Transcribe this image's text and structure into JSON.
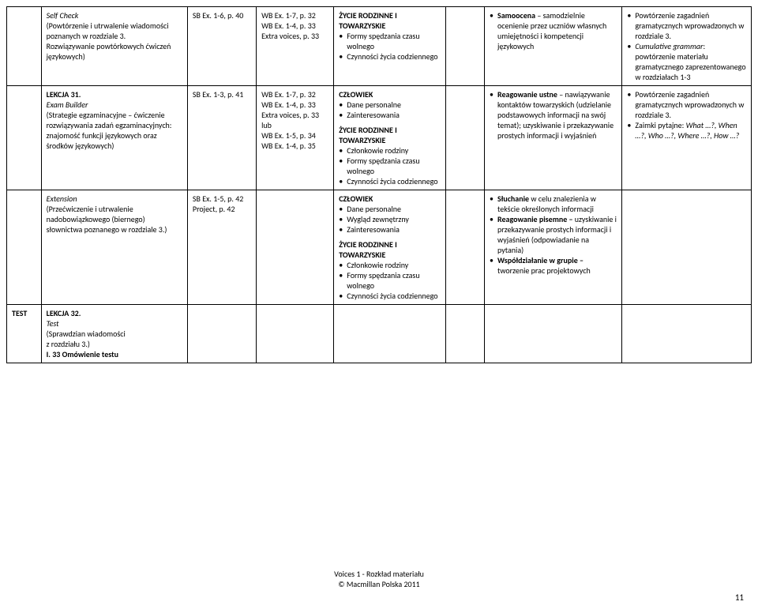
{
  "rows": [
    {
      "c0": "",
      "c1": {
        "title": "Self Check",
        "titleItalic": true,
        "lines": [
          "(Powtórzenie i utrwalenie wiadomości poznanych w rozdziale 3.",
          "Rozwiązywanie powtórkowych ćwiczeń językowych)"
        ]
      },
      "c2": "SB Ex. 1-6, p. 40",
      "c3": [
        "WB Ex. 1-7, p. 32",
        "WB Ex. 1-4, p. 33",
        "Extra voices, p. 33"
      ],
      "c4": [
        {
          "head": "ŻYCIE RODZINNE I TOWARZYSKIE",
          "items": [
            "Formy spędzania czasu wolnego",
            "Czynności życia codziennego"
          ]
        }
      ],
      "c5": "",
      "c6": [
        {
          "bold": "Samoocena",
          "rest": " – samodzielnie ocenienie przez uczniów własnych umiejętności i kompetencji językowych"
        }
      ],
      "c7": [
        {
          "text": "Powtórzenie zagadnień gramatycznych wprowadzonych w rozdziale 3."
        },
        {
          "italic": "Cumulative grammar",
          "rest": ": powtórzenie materiału gramatycznego zaprezentowanego w rozdziałach 1-3"
        }
      ]
    },
    {
      "c0": "",
      "c1": {
        "pre": "LEKCJA 31.",
        "title": "Exam Builder",
        "titleItalic": true,
        "lines": [
          "(Strategie egzaminacyjne – ćwiczenie rozwiązywania zadań egzaminacyjnych: znajomość funkcji językowych oraz środków językowych)"
        ]
      },
      "c2": "SB Ex. 1-3, p. 41",
      "c3": [
        "WB Ex. 1-7, p. 32",
        "WB Ex. 1-4, p. 33",
        "Extra voices, p. 33",
        "lub",
        "WB Ex. 1-5, p. 34",
        "WB Ex. 1-4, p. 35"
      ],
      "c4": [
        {
          "head": "CZŁOWIEK",
          "items": [
            "Dane personalne",
            "Zainteresowania"
          ]
        },
        {
          "head": "ŻYCIE RODZINNE I TOWARZYSKIE",
          "items": [
            "Członkowie rodziny",
            "Formy spędzania czasu wolnego",
            "Czynności życia codziennego"
          ]
        }
      ],
      "c5": "",
      "c6": [
        {
          "bold": "Reagowanie ustne",
          "rest": " – nawiązywanie kontaktów towarzyskich (udzielanie podstawowych informacji na swój temat); uzyskiwanie i przekazywanie prostych informacji i wyjaśnień"
        }
      ],
      "c7": [
        {
          "text": "Powtórzenie zagadnień gramatycznych wprowadzonych w rozdziale 3."
        },
        {
          "html": "Zaimki pytajne: <i>What …?, When …?, Who …?, Where …?, How …?</i>"
        }
      ]
    },
    {
      "c0": "",
      "c1": {
        "title": "Extension",
        "titleItalic": true,
        "lines": [
          "(Przećwiczenie i utrwalenie nadobowiązkowego (biernego) słownictwa poznanego w rozdziale 3.)"
        ]
      },
      "c2": "SB Ex. 1-5, p. 42\nProject, p. 42",
      "c3": [],
      "c4": [
        {
          "head": "CZŁOWIEK",
          "items": [
            "Dane personalne",
            "Wygląd zewnętrzny",
            "Zainteresowania"
          ]
        },
        {
          "head": "ŻYCIE RODZINNE I TOWARZYSKIE",
          "items": [
            "Członkowie rodziny",
            "Formy spędzania czasu wolnego",
            "Czynności życia codziennego"
          ]
        }
      ],
      "c5": "",
      "c6": [
        {
          "bold": "Słuchanie",
          "rest": " w celu znalezienia w tekście określonych informacji"
        },
        {
          "bold": "Reagowanie pisemne –",
          "rest": " uzyskiwanie i przekazywanie prostych informacji i wyjaśnień (odpowiadanie na pytania)"
        },
        {
          "bold": "Współdziałanie w grupie –",
          "rest": " tworzenie prac projektowych"
        }
      ],
      "c7": []
    },
    {
      "c0b": "TEST",
      "c1": {
        "pre": "LEKCJA 32.",
        "title": "Test",
        "titleItalic": true,
        "lines": [
          "(Sprawdzian wiadomości",
          "z rozdziału 3.)"
        ],
        "post": "I. 33 Omówienie testu"
      },
      "rest_empty": true
    }
  ],
  "footer1": "Voices 1 - Rozkład materiału",
  "footer2": "© Macmillan Polska 2011",
  "page": "11"
}
